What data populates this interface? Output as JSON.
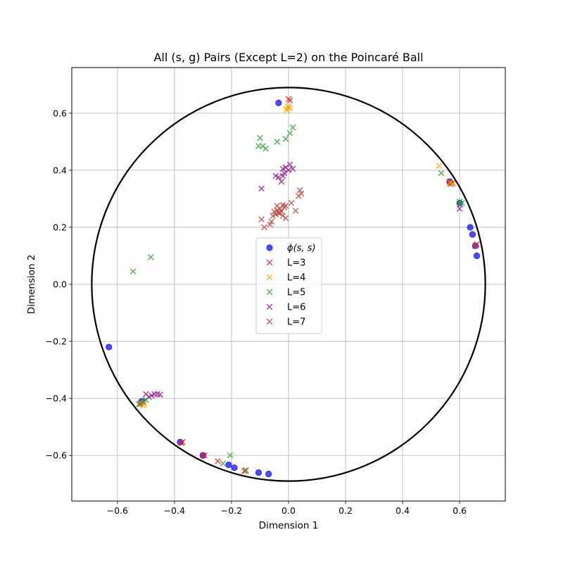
{
  "chart_data": {
    "type": "scatter",
    "title": "All (s, g) Pairs (Except L=2) on the Poincaré Ball",
    "xlabel": "Dimension 1",
    "ylabel": "Dimension 2",
    "xlim": [
      -0.76,
      0.76
    ],
    "ylim": [
      -0.76,
      0.76
    ],
    "xticks": [
      -0.6,
      -0.4,
      -0.2,
      0.0,
      0.2,
      0.4,
      0.6
    ],
    "yticks": [
      -0.6,
      -0.4,
      -0.2,
      0.0,
      0.2,
      0.4,
      0.6
    ],
    "xtick_labels": [
      "−0.6",
      "−0.4",
      "−0.2",
      "0.0",
      "0.2",
      "0.4",
      "0.6"
    ],
    "ytick_labels": [
      "−0.6",
      "−0.4",
      "−0.2",
      "0.0",
      "0.2",
      "0.4",
      "0.6"
    ],
    "grid": true,
    "legend_position": "center",
    "boundary_circle_radius": 0.69,
    "series": [
      {
        "name": "ϕ(s, s)",
        "marker": "circle",
        "color": "#0000ff",
        "points": [
          [
            -0.035,
            0.636
          ],
          [
            -0.63,
            -0.22
          ],
          [
            0.637,
            0.2
          ],
          [
            0.645,
            0.175
          ],
          [
            0.66,
            0.1
          ],
          [
            0.565,
            0.36
          ],
          [
            0.655,
            0.135
          ],
          [
            0.6,
            0.285
          ],
          [
            -0.38,
            -0.553
          ],
          [
            -0.21,
            -0.633
          ],
          [
            -0.19,
            -0.643
          ],
          [
            -0.105,
            -0.66
          ],
          [
            -0.07,
            -0.665
          ],
          [
            -0.3,
            -0.6
          ],
          [
            -0.515,
            -0.41
          ]
        ]
      },
      {
        "name": "L=3",
        "marker": "x",
        "color": "#e41a1c",
        "points": [
          [
            0.0,
            0.65
          ],
          [
            0.005,
            0.645
          ],
          [
            0.565,
            0.36
          ],
          [
            0.575,
            0.355
          ],
          [
            0.568,
            0.352
          ],
          [
            0.655,
            0.135
          ],
          [
            0.66,
            0.14
          ],
          [
            -0.372,
            -0.553
          ],
          [
            -0.375,
            -0.557
          ],
          [
            -0.3,
            -0.6
          ],
          [
            -0.295,
            -0.6
          ],
          [
            -0.248,
            -0.62
          ],
          [
            -0.155,
            -0.655
          ],
          [
            -0.15,
            -0.652
          ],
          [
            -0.52,
            -0.42
          ],
          [
            -0.51,
            -0.415
          ]
        ]
      },
      {
        "name": "L=4",
        "marker": "x",
        "color": "#ffa500",
        "points": [
          [
            -0.008,
            0.615
          ],
          [
            0.0,
            0.62
          ],
          [
            -0.005,
            0.61
          ],
          [
            0.005,
            0.617
          ],
          [
            -0.002,
            0.625
          ],
          [
            0.528,
            0.415
          ],
          [
            0.566,
            0.356
          ],
          [
            0.575,
            0.352
          ],
          [
            -0.505,
            -0.42
          ],
          [
            -0.51,
            -0.425
          ],
          [
            -0.52,
            -0.415
          ]
        ]
      },
      {
        "name": "L=5",
        "marker": "x",
        "color": "#2ca02c",
        "points": [
          [
            -0.1,
            0.513
          ],
          [
            -0.105,
            0.485
          ],
          [
            -0.09,
            0.485
          ],
          [
            -0.08,
            0.476
          ],
          [
            -0.04,
            0.5
          ],
          [
            -0.01,
            0.51
          ],
          [
            0.005,
            0.53
          ],
          [
            0.015,
            0.55
          ],
          [
            -0.545,
            0.045
          ],
          [
            -0.483,
            0.095
          ],
          [
            0.535,
            0.39
          ],
          [
            0.6,
            0.29
          ],
          [
            0.608,
            0.285
          ],
          [
            0.603,
            0.28
          ],
          [
            -0.51,
            -0.41
          ],
          [
            -0.5,
            -0.405
          ],
          [
            -0.525,
            -0.42
          ],
          [
            -0.205,
            -0.6
          ],
          [
            -0.23,
            -0.628
          ],
          [
            -0.15,
            -0.653
          ]
        ]
      },
      {
        "name": "L=6",
        "marker": "x",
        "color": "#8b1a89",
        "points": [
          [
            -0.01,
            0.41
          ],
          [
            0.005,
            0.42
          ],
          [
            0.015,
            0.405
          ],
          [
            0.0,
            0.4
          ],
          [
            -0.02,
            0.405
          ],
          [
            -0.015,
            0.39
          ],
          [
            -0.02,
            0.38
          ],
          [
            -0.035,
            0.375
          ],
          [
            -0.045,
            0.38
          ],
          [
            -0.025,
            0.36
          ],
          [
            -0.095,
            0.336
          ],
          [
            0.6,
            0.265
          ],
          [
            -0.47,
            -0.385
          ],
          [
            -0.46,
            -0.385
          ],
          [
            -0.48,
            -0.39
          ],
          [
            -0.49,
            -0.395
          ],
          [
            -0.45,
            -0.387
          ],
          [
            -0.5,
            -0.385
          ]
        ]
      },
      {
        "name": "L=7",
        "marker": "x",
        "color": "#b5433c",
        "points": [
          [
            -0.02,
            0.278
          ],
          [
            -0.03,
            0.265
          ],
          [
            -0.04,
            0.26
          ],
          [
            -0.05,
            0.255
          ],
          [
            -0.045,
            0.245
          ],
          [
            -0.03,
            0.25
          ],
          [
            -0.02,
            0.24
          ],
          [
            -0.01,
            0.232
          ],
          [
            -0.06,
            0.22
          ],
          [
            -0.065,
            0.21
          ],
          [
            -0.095,
            0.228
          ],
          [
            -0.085,
            0.2
          ],
          [
            -0.015,
            0.27
          ],
          [
            0.01,
            0.285
          ],
          [
            0.025,
            0.258
          ],
          [
            0.035,
            0.31
          ],
          [
            0.04,
            0.33
          ],
          [
            0.045,
            0.318
          ],
          [
            -0.04,
            0.275
          ],
          [
            -0.035,
            0.25
          ],
          [
            0.655,
            0.135
          ],
          [
            -0.025,
            0.255
          ],
          [
            -0.01,
            0.275
          ],
          [
            -0.055,
            0.24
          ]
        ]
      }
    ]
  }
}
